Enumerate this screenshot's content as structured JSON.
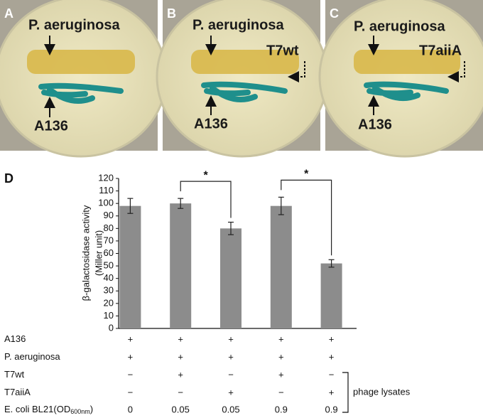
{
  "panels": [
    {
      "label": "A",
      "labels": [
        "P. aeruginosa",
        "A136"
      ]
    },
    {
      "label": "B",
      "labels": [
        "P. aeruginosa",
        "T7wt",
        "A136"
      ]
    },
    {
      "label": "C",
      "labels": [
        "P. aeruginosa",
        "T7aiiA",
        "A136"
      ]
    }
  ],
  "chart_data": {
    "type": "bar",
    "panel_label": "D",
    "ylabel": "β-galactosidase activity",
    "ylabel_unit": "(Miller unit)",
    "values": [
      98,
      100,
      80,
      98,
      52
    ],
    "errors": [
      6,
      4,
      5,
      7,
      3
    ],
    "color": "#8c8c8c",
    "ylim": [
      0,
      120
    ],
    "yticks": [
      0,
      10,
      20,
      30,
      40,
      50,
      60,
      70,
      80,
      90,
      100,
      110,
      120
    ],
    "significance": [
      {
        "pair": [
          1,
          2
        ],
        "label": "*"
      },
      {
        "pair": [
          3,
          4
        ],
        "label": "*"
      }
    ]
  },
  "table": {
    "rows": [
      {
        "label": "A136",
        "cells": [
          "+",
          "+",
          "+",
          "+",
          "+"
        ]
      },
      {
        "label": "P. aeruginosa",
        "cells": [
          "+",
          "+",
          "+",
          "+",
          "+"
        ]
      },
      {
        "label": "T7wt",
        "cells": [
          "−",
          "+",
          "−",
          "+",
          "−"
        ]
      },
      {
        "label": "T7aiiA",
        "cells": [
          "−",
          "−",
          "+",
          "−",
          "+"
        ]
      },
      {
        "label": "E. coli BL21(OD",
        "label_sub": "600nm",
        "label_end": ")",
        "cells": [
          "0",
          "0.05",
          "0.05",
          "0.9",
          "0.9"
        ]
      }
    ],
    "bracket_label": "phage lysates"
  }
}
